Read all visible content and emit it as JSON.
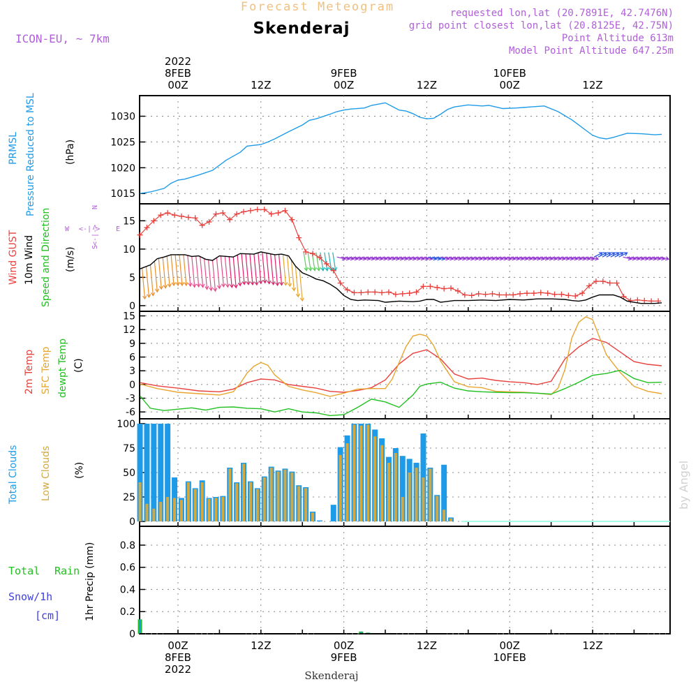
{
  "header": {
    "product": "Forecast Meteogram",
    "location": "Skenderaj",
    "model": "ICON-EU, ~ 7km",
    "requested": "requested lon,lat (20.7891E, 42.7476N)",
    "gridpoint": "grid point closest lon,lat (20.8125E, 42.75N)",
    "point_alt": "Point Altitude 613m",
    "model_alt": "Model Point Altitude 647.25m",
    "watermark": "by Angel",
    "footer": "Skenderaj"
  },
  "time_axis": {
    "top": [
      {
        "h": 0,
        "lines": [
          "2022",
          "8FEB",
          "00Z"
        ]
      },
      {
        "h": 12,
        "lines": [
          "12Z"
        ]
      },
      {
        "h": 24,
        "lines": [
          "9FEB",
          "00Z"
        ]
      },
      {
        "h": 36,
        "lines": [
          "12Z"
        ]
      },
      {
        "h": 48,
        "lines": [
          "10FEB",
          "00Z"
        ]
      },
      {
        "h": 60,
        "lines": [
          "12Z"
        ]
      }
    ],
    "bottom": [
      {
        "h": 0,
        "lines": [
          "00Z",
          "8FEB",
          "2022"
        ]
      },
      {
        "h": 12,
        "lines": [
          "12Z"
        ]
      },
      {
        "h": 24,
        "lines": [
          "00Z",
          "9FEB"
        ]
      },
      {
        "h": 36,
        "lines": [
          "12Z"
        ]
      },
      {
        "h": 48,
        "lines": [
          "00Z",
          "10FEB"
        ]
      },
      {
        "h": 60,
        "lines": [
          "12Z"
        ]
      }
    ]
  },
  "colors": {
    "pressure": "#1e9be8",
    "gust": "#e8403c",
    "wind": "#000000",
    "temp2m": "#e8403c",
    "sfc": "#e8a530",
    "dewpt": "#20c020",
    "total_clouds": "#1e9be8",
    "low_clouds": "#d4a840",
    "rain": "#20c020",
    "snow": "#4040e0",
    "purple": "#b060d8",
    "orange": "#f0c080"
  },
  "panels": {
    "pressure": {
      "labels": [
        "PRMSL",
        "Pressure Reduced to MSL",
        "(hPa)"
      ],
      "yticks": [
        "1015",
        "1020",
        "1025",
        "1030"
      ]
    },
    "wind": {
      "labels": [
        "Wind GUST",
        "10m Wind",
        "Speed and Direction",
        "(m/s)"
      ],
      "yticks": [
        "0",
        "5",
        "10",
        "15"
      ],
      "compass": {
        "n": "N",
        "s": "S",
        "w": "W",
        "e": "E",
        "arrow": "<-|->"
      }
    },
    "temp": {
      "labels": [
        "2m Temp",
        "SFC Temp",
        "dewpt Temp",
        "(C)"
      ],
      "yticks": [
        "-6",
        "-3",
        "0",
        "3",
        "6",
        "9",
        "12",
        "15"
      ]
    },
    "clouds": {
      "labels": [
        "Total Clouds",
        "Low Clouds",
        "(%)"
      ],
      "yticks": [
        "0",
        "25",
        "50",
        "75",
        "100"
      ]
    },
    "precip": {
      "labels": [
        "Total",
        "Rain",
        "Snow/1h",
        "[cm]",
        "1hr Precip (mm)"
      ],
      "yticks": [
        "0",
        "0.2",
        "0.4",
        "0.6",
        "0.8"
      ]
    }
  },
  "chart_data": [
    {
      "type": "line",
      "name": "PRMSL",
      "ylabel": "(hPa)",
      "ylim": [
        1013,
        1034
      ],
      "x_hours": [
        -5.5,
        -4,
        -2,
        -1,
        0,
        1,
        3,
        5,
        7,
        9,
        10,
        12,
        13,
        14,
        16,
        18,
        19,
        20,
        22,
        23,
        24,
        25,
        27,
        28,
        30,
        31,
        32,
        33,
        34,
        35,
        36,
        37,
        38,
        39,
        40,
        42,
        44,
        45,
        47,
        49,
        50,
        51,
        53,
        55,
        57,
        58,
        59,
        60,
        61,
        62,
        63,
        65,
        67,
        69,
        70
      ],
      "values": [
        1015,
        1015.3,
        1016,
        1017,
        1017.6,
        1017.8,
        1018.6,
        1019.5,
        1021.5,
        1023,
        1024.2,
        1024.5,
        1025,
        1025.6,
        1027,
        1028.3,
        1029.2,
        1029.5,
        1030.4,
        1030.9,
        1031.2,
        1031.4,
        1031.6,
        1032.1,
        1032.6,
        1031.9,
        1031.2,
        1031,
        1030.5,
        1029.8,
        1029.5,
        1029.6,
        1030.4,
        1031.3,
        1031.8,
        1032.2,
        1032,
        1032.1,
        1031.5,
        1031.6,
        1031.7,
        1031.8,
        1032,
        1030.9,
        1029.3,
        1028.3,
        1027.3,
        1026.3,
        1025.8,
        1025.6,
        1025.9,
        1026.7,
        1026.6,
        1026.4,
        1026.5
      ]
    },
    {
      "type": "line",
      "name": "Wind GUST",
      "ylabel": "(m/s)",
      "ylim": [
        -1,
        18
      ],
      "x_hours": [
        -5.5,
        -4.5,
        -3.5,
        -2.5,
        -1.5,
        -0.5,
        0.5,
        1.5,
        2.5,
        3.5,
        4.5,
        5.5,
        6.5,
        7.5,
        8.5,
        9.5,
        10.5,
        11.5,
        12.5,
        13.5,
        14.5,
        15.5,
        16.5,
        17.5,
        18.5,
        19.5,
        20.5,
        21.5,
        22.5,
        23.5,
        24.5,
        25.5,
        26.5,
        27.5,
        28.5,
        29.5,
        30.5,
        31.5,
        32.5,
        33.5,
        34.5,
        35.5,
        36.5,
        37.5,
        38.5,
        39.5,
        40.5,
        41.5,
        42.5,
        43.5,
        44.5,
        45.5,
        46.5,
        47.5,
        48.5,
        49.5,
        50.5,
        51.5,
        52.5,
        53.5,
        54.5,
        55.5,
        56.5,
        57.5,
        58.5,
        59.5,
        60.5,
        61.5,
        62.5,
        63.5,
        64.5,
        65.5,
        66.5,
        67.5,
        68.5,
        69.5
      ],
      "values": [
        12.5,
        13.8,
        15,
        16,
        16.4,
        16,
        15.8,
        15.6,
        15.5,
        14.2,
        14.8,
        16.2,
        16.4,
        15.2,
        16.2,
        16.6,
        16.8,
        17,
        17,
        16.2,
        16.4,
        16.8,
        15.2,
        12,
        9.5,
        9.2,
        8.5,
        7.4,
        6.2,
        4,
        2.8,
        2.3,
        2.3,
        2.4,
        2.4,
        2.3,
        2.4,
        2,
        2.1,
        2.2,
        2.4,
        3.4,
        3.4,
        3.2,
        3,
        3.1,
        2.6,
        1.9,
        1.8,
        2.1,
        2,
        2.1,
        1.9,
        1.9,
        1.9,
        2.1,
        2.2,
        2.2,
        2.3,
        2.2,
        2,
        2,
        1.8,
        1.7,
        2.2,
        3.5,
        4.3,
        4.3,
        4,
        4,
        1.6,
        0.9,
        1,
        0.9,
        0.8,
        0.8
      ]
    },
    {
      "type": "line",
      "name": "10m Wind",
      "ylabel": "(m/s)",
      "x_hours": [
        -5.5,
        -4,
        -3,
        -2,
        -1,
        1,
        2,
        3,
        4,
        5,
        6,
        8,
        9,
        11,
        12,
        14,
        15,
        16,
        17,
        18,
        19,
        20,
        21,
        22,
        23,
        24,
        25,
        26,
        27,
        29,
        30,
        32,
        34,
        35,
        36,
        37,
        38,
        40,
        42,
        44,
        46,
        48,
        50,
        52,
        54,
        56,
        57,
        58,
        59,
        60,
        61,
        62,
        63,
        64,
        65,
        67,
        69,
        70
      ],
      "values": [
        6.5,
        7.2,
        8.3,
        8.6,
        9,
        9,
        8.7,
        8.8,
        8.2,
        8,
        8.8,
        8.6,
        9.2,
        9.1,
        9.5,
        9,
        9.1,
        8.8,
        7,
        5.8,
        5.3,
        4.7,
        4.4,
        3.8,
        3,
        1.8,
        1.1,
        0.9,
        1,
        0.9,
        0.6,
        0.8,
        0.7,
        0.8,
        1.1,
        1.1,
        0.6,
        0.9,
        0.9,
        1,
        0.9,
        1.1,
        1,
        1.2,
        1.2,
        1.1,
        0.9,
        0.8,
        1,
        1.5,
        1.9,
        1.9,
        1.9,
        1.5,
        0.8,
        0.4,
        0.4,
        0.5
      ]
    },
    {
      "type": "line",
      "name": "2m Temp",
      "ylabel": "(C)",
      "ylim": [
        -7.5,
        16
      ],
      "x_hours": [
        -5.5,
        -3,
        0,
        3,
        6,
        8,
        10,
        12,
        14,
        16,
        18,
        20,
        22,
        24,
        26,
        28,
        30,
        32,
        34,
        36,
        38,
        40,
        42,
        44,
        46,
        48,
        50,
        52,
        54,
        56,
        58,
        60,
        62,
        64,
        66,
        68,
        70
      ],
      "values": [
        0.4,
        -0.3,
        -0.8,
        -1.4,
        -1.6,
        -1,
        0.4,
        1.2,
        1,
        0,
        -0.4,
        -0.8,
        -1.5,
        -1.7,
        -1.3,
        -0.7,
        1,
        4.5,
        6.8,
        7.6,
        5.6,
        2.3,
        1.2,
        1.4,
        0.9,
        0.6,
        0.4,
        0,
        0.7,
        5.6,
        8.2,
        10.1,
        9.2,
        7.1,
        5,
        4.4,
        4.1
      ]
    },
    {
      "type": "line",
      "name": "SFC Temp",
      "ylabel": "(C)",
      "x_hours": [
        -5.5,
        -3,
        0,
        3,
        6,
        8,
        9,
        10,
        11,
        12,
        13,
        14,
        16,
        18,
        20,
        22,
        24,
        26,
        28,
        30,
        31,
        32,
        33,
        34,
        35,
        36,
        37,
        38,
        40,
        42,
        44,
        46,
        48,
        50,
        52,
        54,
        55,
        56,
        57,
        58,
        59,
        60,
        61,
        62,
        64,
        66,
        68,
        70
      ],
      "values": [
        0.1,
        -0.9,
        -1.7,
        -2,
        -2.3,
        -1.6,
        0.2,
        2.5,
        4,
        4.8,
        4.2,
        2.1,
        -0.4,
        -1.2,
        -1.8,
        -2.6,
        -1.9,
        -1,
        -0.9,
        -0.9,
        1.2,
        4.8,
        8.3,
        10.6,
        11,
        10.6,
        8.5,
        5.1,
        0.6,
        -0.5,
        -0.7,
        -1.5,
        -1.6,
        -1.7,
        -1.9,
        -2.2,
        -0.8,
        3.3,
        10.2,
        13.6,
        14.8,
        14.2,
        10.3,
        6.5,
        2.6,
        -0.4,
        -1.5,
        -2
      ]
    },
    {
      "type": "line",
      "name": "dewpt Temp",
      "ylabel": "(C)",
      "x_hours": [
        -5.5,
        -4,
        -2,
        0,
        2,
        4,
        6,
        8,
        10,
        12,
        14,
        16,
        18,
        20,
        22,
        24,
        26,
        28,
        30,
        32,
        34,
        35,
        36,
        38,
        40,
        42,
        44,
        46,
        48,
        50,
        52,
        54,
        56,
        58,
        60,
        62,
        64,
        66,
        68,
        70
      ],
      "values": [
        -2.5,
        -5.2,
        -5.7,
        -5.4,
        -5.1,
        -5.6,
        -5,
        -4.9,
        -5.2,
        -5.3,
        -6,
        -5.3,
        -6,
        -6.2,
        -6.8,
        -6.6,
        -5,
        -3.2,
        -3.8,
        -5,
        -2.3,
        -0.4,
        0.1,
        0.5,
        -0.8,
        -1.4,
        -1.6,
        -1.7,
        -1.8,
        -1.8,
        -1.9,
        -2.1,
        -0.9,
        0.5,
        2,
        2.4,
        3.1,
        1.3,
        0.4,
        0.5
      ]
    },
    {
      "type": "bar",
      "name": "Clouds",
      "ylabel": "(%)",
      "ylim": [
        -5,
        105
      ],
      "x_hours": [
        -5.5,
        -4.5,
        -3.5,
        -2.5,
        -1.5,
        -0.5,
        0.5,
        1.5,
        2.5,
        3.5,
        4.5,
        5.5,
        6.5,
        7.5,
        8.5,
        9.5,
        10.5,
        11.5,
        12.5,
        13.5,
        14.5,
        15.5,
        16.5,
        17.5,
        18.5,
        19.5,
        20.5,
        21.5,
        22.5,
        23.5,
        24.5,
        25.5,
        26.5,
        27.5,
        28.5,
        29.5,
        30.5,
        31.5,
        32.5,
        33.5,
        34.5,
        35.5,
        36.5,
        37.5,
        38.5,
        39.5,
        40.5
      ],
      "series": [
        {
          "name": "Total Clouds",
          "values": [
            100,
            100,
            100,
            100,
            100,
            45,
            24,
            41,
            34,
            42,
            24,
            25,
            26,
            55,
            40,
            60,
            41,
            34,
            46,
            56,
            52,
            54,
            51,
            37,
            35,
            10,
            1,
            0,
            17,
            76,
            88,
            100,
            100,
            100,
            94,
            85,
            66,
            75,
            67,
            64,
            60,
            90,
            55,
            27,
            58,
            4,
            0
          ]
        },
        {
          "name": "Low Clouds",
          "values": [
            40,
            18,
            13,
            20,
            25,
            24,
            22,
            40,
            33,
            40,
            23,
            24,
            25,
            54,
            39,
            59,
            40,
            33,
            45,
            55,
            51,
            53,
            50,
            36,
            34,
            9,
            0,
            0,
            0,
            68,
            80,
            99,
            98,
            99,
            87,
            78,
            60,
            70,
            25,
            50,
            55,
            45,
            54,
            26,
            12,
            3,
            0
          ]
        }
      ]
    },
    {
      "type": "bar",
      "name": "1hr Precip",
      "ylabel": "1hr Precip (mm)",
      "ylim": [
        0,
        0.97
      ],
      "x_hours": [
        -5.5,
        26.5,
        27.5
      ],
      "series": [
        {
          "name": "Total Rain",
          "values": [
            0.13,
            0.02,
            0.01
          ]
        }
      ]
    }
  ],
  "wind_arrows": {
    "note": "direction arrows shown along wind line",
    "x_hours": [
      -5.2,
      -4.6,
      -4,
      -3.4,
      -2.8,
      -2.2,
      -1.6,
      -1,
      -0.4,
      0.2,
      0.8,
      1.4,
      2,
      2.6,
      3.2,
      3.8,
      4.4,
      5,
      5.6,
      6.2,
      6.8,
      7.4,
      8,
      8.6,
      9.2,
      9.8,
      10.4,
      11,
      11.6,
      12.2,
      12.8,
      13.4,
      14,
      14.6,
      15.2,
      15.8,
      16.4,
      17,
      17.6,
      18.2,
      18.8,
      19.4,
      20,
      20.6,
      21.2,
      21.8,
      22.4,
      23,
      23.6,
      24.2,
      24.8,
      25.4,
      26,
      26.6,
      27.2,
      27.8,
      28.4,
      29,
      29.6,
      30.2,
      30.8,
      31.4,
      32,
      32.6,
      33.2,
      33.8,
      34.4,
      35,
      35.6,
      36.2,
      36.8,
      37.4,
      38,
      38.6,
      39.2,
      39.8,
      40.4,
      41,
      41.6,
      42.2,
      42.8,
      43.4,
      44,
      44.6,
      45.2,
      45.8,
      46.4,
      47,
      47.6,
      48.2,
      48.8,
      49.4,
      50,
      50.6,
      51.2,
      51.8,
      52.4,
      53,
      53.6,
      54.2,
      54.8,
      55.4,
      56,
      56.6,
      57.2,
      57.8,
      58.4,
      59,
      59.6,
      60.2,
      60.8,
      61.4,
      62,
      62.6,
      63.2,
      63.8,
      64.4,
      65,
      65.6,
      66.2,
      66.8,
      67.4,
      68,
      68.6,
      69.2,
      69.8
    ]
  }
}
